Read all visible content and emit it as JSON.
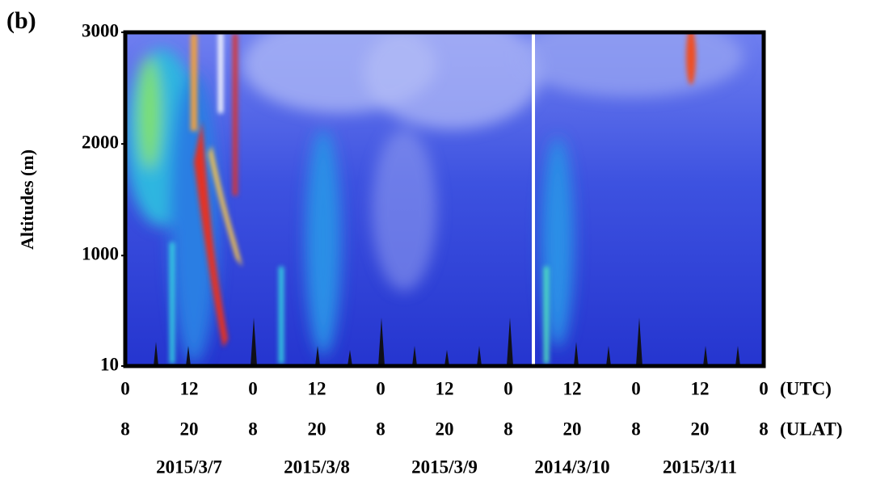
{
  "chart_data": {
    "type": "heatmap",
    "title": "(b)",
    "ylabel": "Altitudes (m)",
    "ylim": [
      10,
      3000
    ],
    "yticks": [
      10,
      1000,
      2000,
      3000
    ],
    "xlim": [
      0,
      120
    ],
    "xticks": [
      {
        "value": 0,
        "label": "0"
      },
      {
        "value": 12,
        "label": "12"
      },
      {
        "value": 24,
        "label": "0"
      },
      {
        "value": 36,
        "label": "12"
      },
      {
        "value": 48,
        "label": "0"
      },
      {
        "value": 60,
        "label": "12"
      },
      {
        "value": 72,
        "label": "0"
      },
      {
        "value": 84,
        "label": "12"
      },
      {
        "value": 96,
        "label": "0"
      },
      {
        "value": 108,
        "label": "12"
      },
      {
        "value": 120,
        "label": "0"
      }
    ],
    "xlabel": "(UTC)",
    "x2ticks": [
      {
        "value": 0,
        "label": "8"
      },
      {
        "value": 12,
        "label": "20"
      },
      {
        "value": 24,
        "label": "8"
      },
      {
        "value": 36,
        "label": "20"
      },
      {
        "value": 48,
        "label": "8"
      },
      {
        "value": 60,
        "label": "20"
      },
      {
        "value": 72,
        "label": "8"
      },
      {
        "value": 84,
        "label": "20"
      },
      {
        "value": 96,
        "label": "8"
      },
      {
        "value": 108,
        "label": "20"
      },
      {
        "value": 120,
        "label": "8"
      }
    ],
    "x2label": "(ULAT)",
    "categories": [
      "2015/3/7",
      "2015/3/8",
      "2015/3/9",
      "2014/3/10",
      "2015/3/11"
    ]
  }
}
